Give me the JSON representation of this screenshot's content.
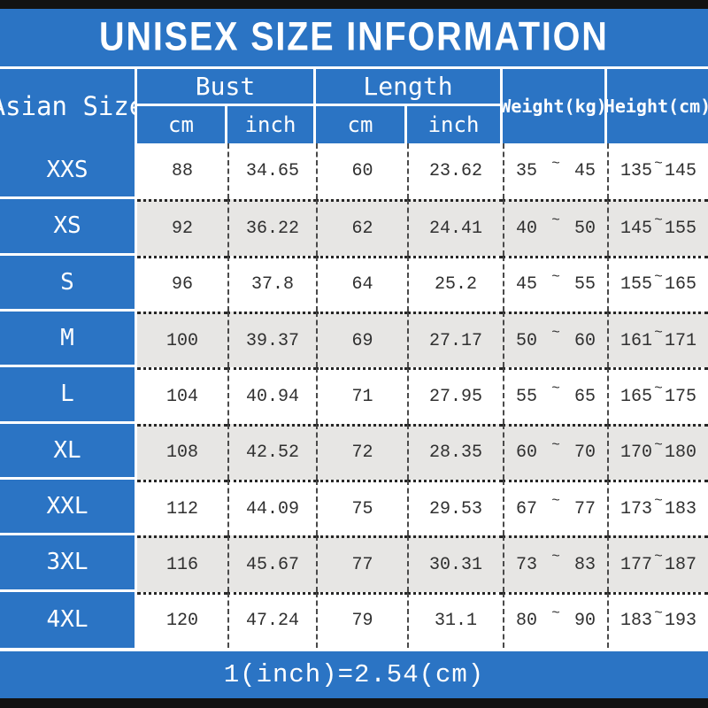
{
  "title": "UNISEX SIZE INFORMATION",
  "colors": {
    "accent_blue": "#2b74c4",
    "row_alt_gray": "#e7e6e4",
    "bar_black": "#121212",
    "data_text": "#303030"
  },
  "table": {
    "header": {
      "size_col": "Asian Size",
      "bust": "Bust",
      "length": "Length",
      "weight": "Weight(kg)",
      "height": "Height(cm)",
      "cm": "cm",
      "inch": "inch"
    },
    "range_separator": "~",
    "rows": [
      {
        "size": "XXS",
        "bust_cm": "88",
        "bust_inch": "34.65",
        "length_cm": "60",
        "length_inch": "23.62",
        "weight_min": "35",
        "weight_max": "45",
        "height_min": "135",
        "height_max": "145"
      },
      {
        "size": "XS",
        "bust_cm": "92",
        "bust_inch": "36.22",
        "length_cm": "62",
        "length_inch": "24.41",
        "weight_min": "40",
        "weight_max": "50",
        "height_min": "145",
        "height_max": "155"
      },
      {
        "size": "S",
        "bust_cm": "96",
        "bust_inch": "37.8",
        "length_cm": "64",
        "length_inch": "25.2",
        "weight_min": "45",
        "weight_max": "55",
        "height_min": "155",
        "height_max": "165"
      },
      {
        "size": "M",
        "bust_cm": "100",
        "bust_inch": "39.37",
        "length_cm": "69",
        "length_inch": "27.17",
        "weight_min": "50",
        "weight_max": "60",
        "height_min": "161",
        "height_max": "171"
      },
      {
        "size": "L",
        "bust_cm": "104",
        "bust_inch": "40.94",
        "length_cm": "71",
        "length_inch": "27.95",
        "weight_min": "55",
        "weight_max": "65",
        "height_min": "165",
        "height_max": "175"
      },
      {
        "size": "XL",
        "bust_cm": "108",
        "bust_inch": "42.52",
        "length_cm": "72",
        "length_inch": "28.35",
        "weight_min": "60",
        "weight_max": "70",
        "height_min": "170",
        "height_max": "180"
      },
      {
        "size": "XXL",
        "bust_cm": "112",
        "bust_inch": "44.09",
        "length_cm": "75",
        "length_inch": "29.53",
        "weight_min": "67",
        "weight_max": "77",
        "height_min": "173",
        "height_max": "183"
      },
      {
        "size": "3XL",
        "bust_cm": "116",
        "bust_inch": "45.67",
        "length_cm": "77",
        "length_inch": "30.31",
        "weight_min": "73",
        "weight_max": "83",
        "height_min": "177",
        "height_max": "187"
      },
      {
        "size": "4XL",
        "bust_cm": "120",
        "bust_inch": "47.24",
        "length_cm": "79",
        "length_inch": "31.1",
        "weight_min": "80",
        "weight_max": "90",
        "height_min": "183",
        "height_max": "193"
      }
    ]
  },
  "footer": {
    "note": "1(inch)=2.54(cm)"
  },
  "chart_data": {
    "type": "table",
    "title": "UNISEX SIZE INFORMATION",
    "columns": [
      "Asian Size",
      "Bust cm",
      "Bust inch",
      "Length cm",
      "Length inch",
      "Weight(kg)",
      "Height(cm)"
    ],
    "rows": [
      [
        "XXS",
        88,
        34.65,
        60,
        23.62,
        "35~45",
        "135~145"
      ],
      [
        "XS",
        92,
        36.22,
        62,
        24.41,
        "40~50",
        "145~155"
      ],
      [
        "S",
        96,
        37.8,
        64,
        25.2,
        "45~55",
        "155~165"
      ],
      [
        "M",
        100,
        39.37,
        69,
        27.17,
        "50~60",
        "161~171"
      ],
      [
        "L",
        104,
        40.94,
        71,
        27.95,
        "55~65",
        "165~175"
      ],
      [
        "XL",
        108,
        42.52,
        72,
        28.35,
        "60~70",
        "170~180"
      ],
      [
        "XXL",
        112,
        44.09,
        75,
        29.53,
        "67~77",
        "173~183"
      ],
      [
        "3XL",
        116,
        45.67,
        77,
        30.31,
        "73~83",
        "177~187"
      ],
      [
        "4XL",
        120,
        47.24,
        79,
        31.1,
        "80~90",
        "183~193"
      ]
    ],
    "footnote": "1(inch)=2.54(cm)"
  }
}
